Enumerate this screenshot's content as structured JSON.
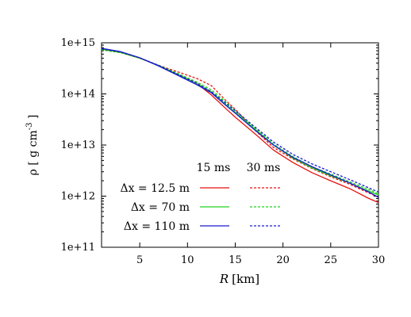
{
  "chart_data": {
    "type": "line",
    "title": "",
    "xlabel": "[km]",
    "xlabel_var": "R",
    "ylabel": "ρ [ g cm",
    "ylabel_sup": "-3",
    "ylabel_close": " ]",
    "xlim": [
      1,
      30
    ],
    "ylim": [
      100000000000.0,
      1000000000000000.0
    ],
    "yscale": "log",
    "grid": false,
    "x_ticks": [
      5,
      10,
      15,
      20,
      25,
      30
    ],
    "x_tick_labels": [
      "5",
      "10",
      "15",
      "20",
      "25",
      "30"
    ],
    "y_ticks": [
      100000000000.0,
      1000000000000.0,
      10000000000000.0,
      100000000000000.0,
      1000000000000000.0
    ],
    "y_tick_labels": [
      "1e+11",
      "1e+12",
      "1e+13",
      "1e+14",
      "1e+15"
    ],
    "legend": {
      "placement": "lower-left",
      "column_headers": [
        "15 ms",
        "30 ms"
      ],
      "rows": [
        "Δx = 12.5 m",
        "Δx = 70 m",
        "Δx = 110 m"
      ]
    },
    "x": [
      1,
      3,
      5,
      7,
      9,
      11,
      12.5,
      14,
      15,
      17,
      19,
      21,
      23,
      25,
      27,
      29,
      30
    ],
    "series": [
      {
        "label": "Δx = 12.5 m",
        "time": "15 ms",
        "style": "solid",
        "color": "#e8120e",
        "values": [
          750000000000000.0,
          650000000000000.0,
          500000000000000.0,
          360000000000000.0,
          240000000000000.0,
          160000000000000.0,
          95000000000000.0,
          52000000000000.0,
          35000000000000.0,
          17000000000000.0,
          8000000000000.0,
          4600000000000.0,
          2900000000000.0,
          2000000000000.0,
          1400000000000.0,
          900000000000.0,
          750000000000.0
        ]
      },
      {
        "label": "Δx = 12.5 m",
        "time": "30 ms",
        "style": "dashed",
        "color": "#e8120e",
        "values": [
          730000000000000.0,
          640000000000000.0,
          500000000000000.0,
          360000000000000.0,
          270000000000000.0,
          200000000000000.0,
          145000000000000.0,
          75000000000000.0,
          50000000000000.0,
          20000000000000.0,
          9000000000000.0,
          5400000000000.0,
          3500000000000.0,
          2400000000000.0,
          1700000000000.0,
          1150000000000.0,
          950000000000.0
        ]
      },
      {
        "label": "Δx = 70 m",
        "time": "15 ms",
        "style": "solid",
        "color": "#1dd21d",
        "values": [
          750000000000000.0,
          650000000000000.0,
          500000000000000.0,
          360000000000000.0,
          240000000000000.0,
          160000000000000.0,
          110000000000000.0,
          62000000000000.0,
          44000000000000.0,
          21000000000000.0,
          10000000000000.0,
          5600000000000.0,
          3600000000000.0,
          2500000000000.0,
          1800000000000.0,
          1250000000000.0,
          1050000000000.0
        ]
      },
      {
        "label": "Δx = 70 m",
        "time": "30 ms",
        "style": "dashed",
        "color": "#1dd21d",
        "values": [
          730000000000000.0,
          640000000000000.0,
          500000000000000.0,
          360000000000000.0,
          250000000000000.0,
          170000000000000.0,
          120000000000000.0,
          70000000000000.0,
          48000000000000.0,
          22000000000000.0,
          10500000000000.0,
          6000000000000.0,
          3800000000000.0,
          2700000000000.0,
          1900000000000.0,
          1350000000000.0,
          1100000000000.0
        ]
      },
      {
        "label": "Δx = 110 m",
        "time": "15 ms",
        "style": "solid",
        "color": "#1a1acd",
        "values": [
          780000000000000.0,
          670000000000000.0,
          510000000000000.0,
          350000000000000.0,
          230000000000000.0,
          150000000000000.0,
          105000000000000.0,
          60000000000000.0,
          42000000000000.0,
          20000000000000.0,
          10000000000000.0,
          5800000000000.0,
          3800000000000.0,
          2600000000000.0,
          1800000000000.0,
          1200000000000.0,
          950000000000.0
        ]
      },
      {
        "label": "Δx = 110 m",
        "time": "30 ms",
        "style": "dashed",
        "color": "#1a1acd",
        "values": [
          760000000000000.0,
          660000000000000.0,
          510000000000000.0,
          360000000000000.0,
          240000000000000.0,
          160000000000000.0,
          110000000000000.0,
          66000000000000.0,
          47000000000000.0,
          23000000000000.0,
          11500000000000.0,
          6600000000000.0,
          4300000000000.0,
          3000000000000.0,
          2100000000000.0,
          1450000000000.0,
          1200000000000.0
        ]
      }
    ]
  }
}
